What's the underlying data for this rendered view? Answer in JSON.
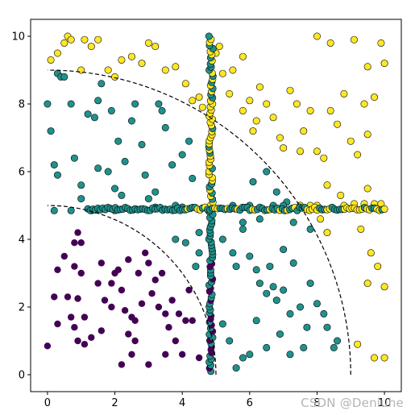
{
  "watermark": "CSDN @Deniuhe",
  "chart_data": {
    "type": "scatter",
    "title": "",
    "xlabel": "",
    "ylabel": "",
    "xlim": [
      -0.5,
      10.5
    ],
    "ylim": [
      -0.5,
      10.5
    ],
    "xticks": [
      0,
      2,
      4,
      6,
      8,
      10
    ],
    "yticks": [
      0,
      2,
      4,
      6,
      8,
      10
    ],
    "grid": false,
    "legend": "none",
    "colors": {
      "class0": "#440154",
      "class1": "#21918c",
      "class2": "#fde725",
      "edge": "#000000"
    },
    "boundaries": [
      {
        "style": "dashed",
        "shape": "quarter-circle",
        "center": [
          0,
          0
        ],
        "radius": 5
      },
      {
        "style": "dashed",
        "shape": "quarter-circle",
        "center": [
          0,
          0
        ],
        "radius": 9
      }
    ],
    "series": [
      {
        "class": 0,
        "color": "#440154",
        "points": [
          [
            0,
            0.85
          ],
          [
            0.2,
            2.3
          ],
          [
            0.3,
            1.5
          ],
          [
            0.5,
            3.5
          ],
          [
            0.6,
            2.3
          ],
          [
            0.7,
            1.7
          ],
          [
            0.8,
            1.4
          ],
          [
            0.9,
            2.25
          ],
          [
            0.9,
            1.0
          ],
          [
            1.0,
            3.0
          ],
          [
            0.8,
            3.2
          ],
          [
            0.8,
            3.9
          ],
          [
            0.9,
            4.2
          ],
          [
            1.0,
            3.9
          ],
          [
            1.1,
            1.7
          ],
          [
            1.3,
            1.1
          ],
          [
            1.5,
            2.7
          ],
          [
            1.6,
            1.3
          ],
          [
            1.7,
            2.2
          ],
          [
            1.9,
            2.0
          ],
          [
            1.9,
            2.7
          ],
          [
            2.0,
            3.0
          ],
          [
            2.1,
            3.1
          ],
          [
            2.2,
            2.5
          ],
          [
            2.3,
            1.9
          ],
          [
            2.5,
            1.7
          ],
          [
            2.4,
            1.2
          ],
          [
            2.5,
            0.6
          ],
          [
            2.6,
            1.0
          ],
          [
            2.7,
            3.0
          ],
          [
            2.8,
            2.1
          ],
          [
            3.0,
            3.3
          ],
          [
            3.1,
            2.4
          ],
          [
            3.2,
            2.8
          ],
          [
            3.3,
            2.0
          ],
          [
            3.4,
            3.0
          ],
          [
            3.5,
            1.8
          ],
          [
            3.6,
            1.4
          ],
          [
            3.7,
            2.2
          ],
          [
            3.8,
            1.0
          ],
          [
            3.9,
            1.8
          ],
          [
            4.1,
            1.6
          ],
          [
            4.2,
            2.5
          ],
          [
            4.0,
            0.6
          ],
          [
            4.5,
            0.5
          ],
          [
            3.0,
            0.3
          ],
          [
            3.5,
            0.6
          ],
          [
            2.2,
            0.3
          ],
          [
            1.1,
            0.9
          ],
          [
            4.3,
            1.6
          ],
          [
            0.3,
            3.1
          ],
          [
            2.9,
            3.6
          ],
          [
            2.6,
            1.6
          ],
          [
            1.6,
            3.3
          ],
          [
            2.4,
            3.4
          ]
        ]
      },
      {
        "class": 1,
        "color": "#21918c",
        "points": [
          [
            0,
            8.0
          ],
          [
            0.1,
            7.2
          ],
          [
            0.2,
            6.2
          ],
          [
            0.3,
            5.9
          ],
          [
            0.3,
            8.9
          ],
          [
            0.4,
            8.8
          ],
          [
            0.5,
            8.8
          ],
          [
            0.7,
            8.0
          ],
          [
            0.8,
            6.4
          ],
          [
            1.0,
            5.2
          ],
          [
            1.0,
            5.6
          ],
          [
            1.2,
            7.7
          ],
          [
            1.4,
            7.6
          ],
          [
            1.5,
            8.1
          ],
          [
            1.5,
            6.1
          ],
          [
            1.6,
            8.6
          ],
          [
            1.8,
            6.0
          ],
          [
            1.9,
            7.8
          ],
          [
            2.0,
            5.5
          ],
          [
            2.1,
            6.9
          ],
          [
            2.2,
            5.3
          ],
          [
            2.3,
            6.3
          ],
          [
            2.5,
            7.5
          ],
          [
            2.6,
            8.0
          ],
          [
            2.8,
            6.8
          ],
          [
            2.9,
            5.9
          ],
          [
            3.0,
            5.2
          ],
          [
            3.2,
            5.4
          ],
          [
            3.3,
            8.0
          ],
          [
            3.4,
            7.8
          ],
          [
            3.5,
            7.3
          ],
          [
            3.7,
            6.2
          ],
          [
            3.8,
            5.0
          ],
          [
            4.0,
            6.5
          ],
          [
            4.2,
            6.9
          ],
          [
            4.3,
            5.8
          ],
          [
            4.5,
            4.2
          ],
          [
            4.5,
            3.6
          ],
          [
            4.4,
            3.2
          ],
          [
            4.1,
            3.9
          ],
          [
            3.8,
            4.0
          ],
          [
            5.2,
            4.0
          ],
          [
            5.5,
            3.6
          ],
          [
            5.6,
            3.2
          ],
          [
            5.8,
            4.3
          ],
          [
            6.0,
            3.5
          ],
          [
            6.2,
            3.1
          ],
          [
            6.3,
            2.7
          ],
          [
            6.5,
            2.4
          ],
          [
            6.7,
            2.6
          ],
          [
            6.8,
            2.2
          ],
          [
            7.0,
            2.5
          ],
          [
            7.2,
            1.8
          ],
          [
            7.3,
            3.3
          ],
          [
            7.5,
            2.0
          ],
          [
            7.7,
            1.4
          ],
          [
            7.8,
            2.7
          ],
          [
            8.0,
            2.1
          ],
          [
            8.2,
            1.8
          ],
          [
            8.3,
            1.4
          ],
          [
            8.5,
            0.8
          ],
          [
            8.6,
            1.0
          ],
          [
            7.6,
            0.8
          ],
          [
            7.2,
            0.6
          ],
          [
            6.9,
            1.2
          ],
          [
            6.5,
            0.8
          ],
          [
            6.0,
            0.6
          ],
          [
            5.8,
            0.5
          ],
          [
            5.6,
            0.2
          ],
          [
            5.4,
            1.0
          ],
          [
            5.2,
            1.5
          ],
          [
            6.2,
            1.6
          ],
          [
            6.6,
            3.2
          ],
          [
            7.0,
            3.7
          ],
          [
            7.3,
            4.5
          ],
          [
            7.8,
            4.3
          ],
          [
            6.3,
            4.6
          ],
          [
            5.8,
            4.5
          ],
          [
            6.1,
            5.7
          ],
          [
            6.5,
            6.0
          ],
          [
            6.8,
            5.4
          ],
          [
            7.1,
            5.1
          ],
          [
            0.2,
            4.85
          ],
          [
            0.7,
            4.85
          ],
          [
            1.3,
            4.85
          ],
          [
            2.0,
            4.85
          ],
          [
            2.6,
            4.9
          ],
          [
            3.2,
            4.95
          ],
          [
            4.0,
            4.95
          ],
          [
            5.5,
            5.0
          ],
          [
            6.0,
            5.0
          ],
          [
            6.7,
            5.0
          ],
          [
            7.0,
            5.0
          ]
        ]
      },
      {
        "class": 2,
        "color": "#fde725",
        "points": [
          [
            0.1,
            9.3
          ],
          [
            0.3,
            9.5
          ],
          [
            0.5,
            9.8
          ],
          [
            0.6,
            10.0
          ],
          [
            0.7,
            9.9
          ],
          [
            1.0,
            9.0
          ],
          [
            1.1,
            9.9
          ],
          [
            1.3,
            9.7
          ],
          [
            1.5,
            9.9
          ],
          [
            1.8,
            9.0
          ],
          [
            2.0,
            8.8
          ],
          [
            2.2,
            9.3
          ],
          [
            2.5,
            9.4
          ],
          [
            2.8,
            9.2
          ],
          [
            3.0,
            9.8
          ],
          [
            3.2,
            9.7
          ],
          [
            3.5,
            9.0
          ],
          [
            3.8,
            9.1
          ],
          [
            4.1,
            8.6
          ],
          [
            4.5,
            8.2
          ],
          [
            5.0,
            9.5
          ],
          [
            5.2,
            8.9
          ],
          [
            5.5,
            9.0
          ],
          [
            5.8,
            9.4
          ],
          [
            6.0,
            8.1
          ],
          [
            6.2,
            7.5
          ],
          [
            6.3,
            8.5
          ],
          [
            6.5,
            8.0
          ],
          [
            6.7,
            7.6
          ],
          [
            6.9,
            7.0
          ],
          [
            7.0,
            6.7
          ],
          [
            7.2,
            8.4
          ],
          [
            7.4,
            8.0
          ],
          [
            7.6,
            7.2
          ],
          [
            7.8,
            7.8
          ],
          [
            8.0,
            6.6
          ],
          [
            8.2,
            6.4
          ],
          [
            8.4,
            7.8
          ],
          [
            8.6,
            7.4
          ],
          [
            8.8,
            8.3
          ],
          [
            9.0,
            6.9
          ],
          [
            9.2,
            6.5
          ],
          [
            9.4,
            8.0
          ],
          [
            9.5,
            7.1
          ],
          [
            9.7,
            8.2
          ],
          [
            9.9,
            9.8
          ],
          [
            10.0,
            9.2
          ],
          [
            9.5,
            5.5
          ],
          [
            9.3,
            4.3
          ],
          [
            9.6,
            3.6
          ],
          [
            9.8,
            3.2
          ],
          [
            10.0,
            2.6
          ],
          [
            9.5,
            2.7
          ],
          [
            9.7,
            0.5
          ],
          [
            10.0,
            0.5
          ],
          [
            9.2,
            0.9
          ],
          [
            8.0,
            10.0
          ],
          [
            8.4,
            9.8
          ],
          [
            9.1,
            9.9
          ],
          [
            9.5,
            9.1
          ],
          [
            5.4,
            8.3
          ],
          [
            5.8,
            7.8
          ],
          [
            6.1,
            7.2
          ],
          [
            7.5,
            6.6
          ],
          [
            8.3,
            5.6
          ],
          [
            8.7,
            5.3
          ],
          [
            8.5,
            4.9
          ],
          [
            8.8,
            5.0
          ],
          [
            9.1,
            5.05
          ],
          [
            9.4,
            5.05
          ],
          [
            9.7,
            5.05
          ],
          [
            9.9,
            5.05
          ],
          [
            8.1,
            4.6
          ],
          [
            8.3,
            4.2
          ],
          [
            8.0,
            5.0
          ],
          [
            7.8,
            5.0
          ],
          [
            7.5,
            5.0
          ],
          [
            5.1,
            9.7
          ],
          [
            4.3,
            8.1
          ],
          [
            4.6,
            7.9
          ]
        ]
      },
      {
        "class": "mixed",
        "color_rule": "class1 below y=4.9 on the vertical line, class2 above; horizontal line class1 left of x=7.6, class2 right",
        "lines": [
          {
            "orientation": "vertical",
            "x": 4.85,
            "y_range": [
              0.1,
              10.0
            ],
            "count": 110
          },
          {
            "orientation": "horizontal",
            "y": 4.9,
            "x_range": [
              1.2,
              10.0
            ],
            "count": 120
          }
        ]
      }
    ]
  }
}
